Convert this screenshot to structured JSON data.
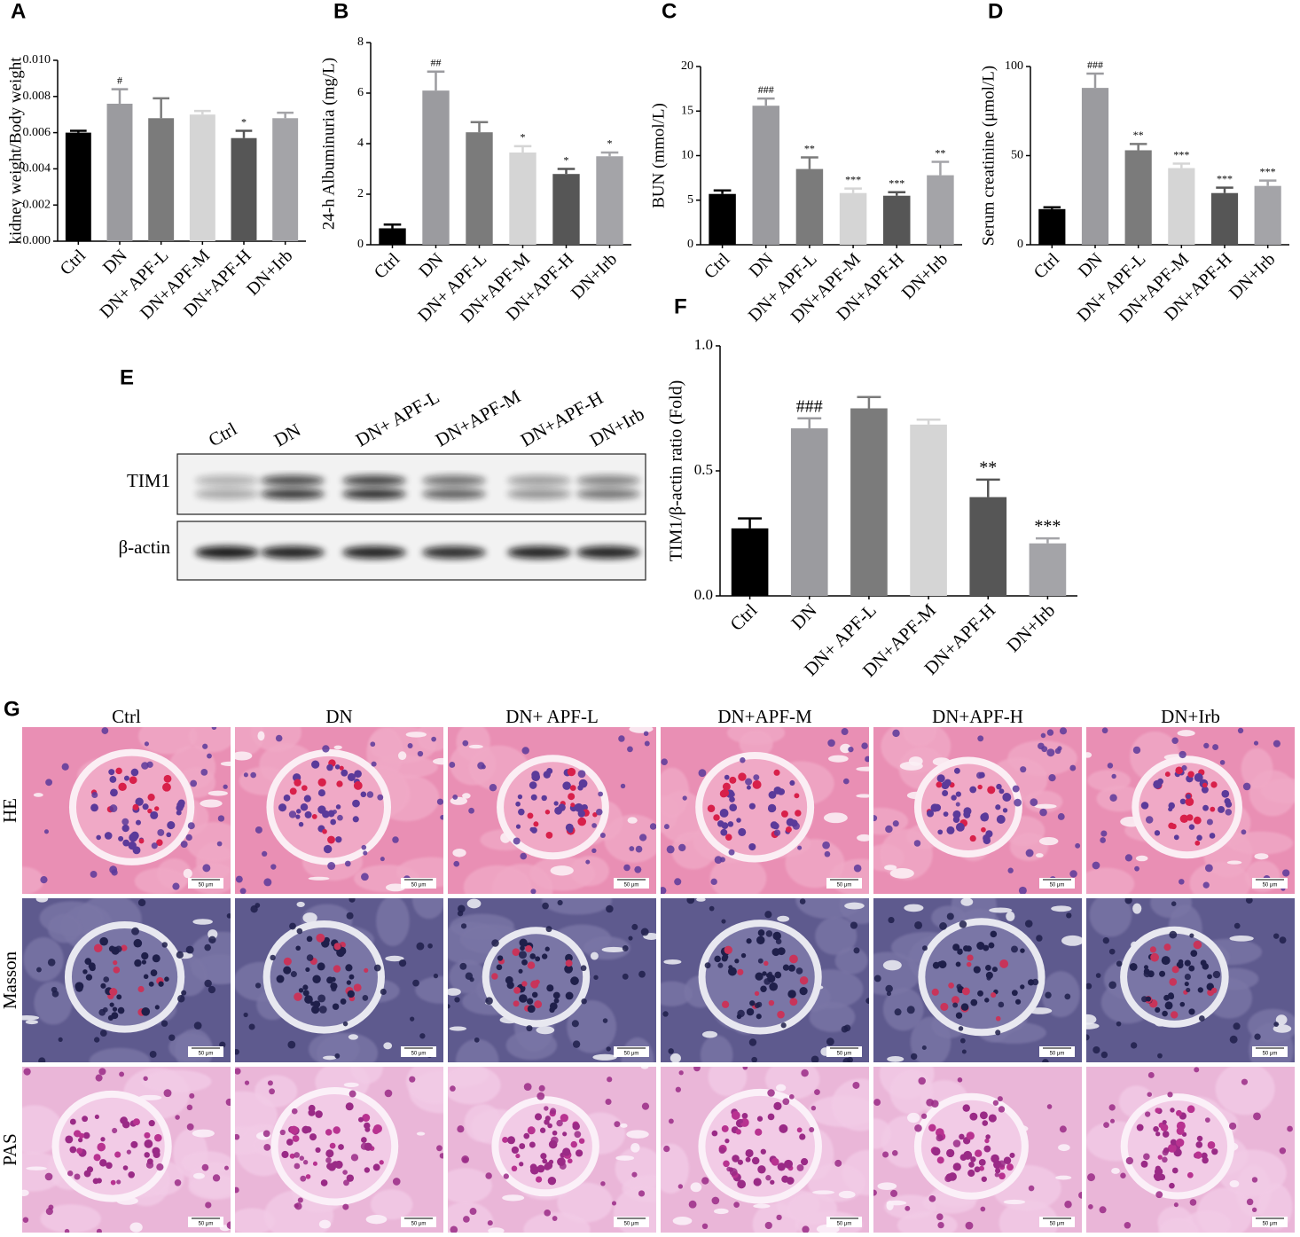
{
  "chart_data": [
    {
      "type": "bar",
      "panel": "A",
      "ylabel": "kidney weight/Body weight",
      "categories": [
        "Ctrl",
        "DN",
        "DN+ APF-L",
        "DN+APF-M",
        "DN+APF-H",
        "DN+Irb"
      ],
      "values": [
        0.006,
        0.0076,
        0.0068,
        0.007,
        0.0057,
        0.0068
      ],
      "errors": [
        0.0001,
        0.0008,
        0.0011,
        0.0002,
        0.0004,
        0.0003
      ],
      "annotations": [
        null,
        "#",
        null,
        null,
        "*",
        null
      ],
      "colors": [
        "#000000",
        "#9b9b9f",
        "#7b7b7b",
        "#d5d5d5",
        "#565656",
        "#a4a4a8"
      ],
      "ylim": [
        0,
        0.01
      ],
      "yticks": [
        {
          "value": 0,
          "label": "0.000"
        },
        {
          "value": 0.002,
          "label": "0.002"
        },
        {
          "value": 0.004,
          "label": "0.004"
        },
        {
          "value": 0.006,
          "label": "0.006"
        },
        {
          "value": 0.008,
          "label": "0.008"
        },
        {
          "value": 0.01,
          "label": "0.010"
        }
      ]
    },
    {
      "type": "bar",
      "panel": "B",
      "ylabel": "24-h Albuminuria (mg/L)",
      "categories": [
        "Ctrl",
        "DN",
        "DN+ APF-L",
        "DN+APF-M",
        "DN+APF-H",
        "DN+Irb"
      ],
      "values": [
        0.65,
        6.1,
        4.45,
        3.65,
        2.8,
        3.5
      ],
      "errors": [
        0.15,
        0.75,
        0.4,
        0.25,
        0.2,
        0.15
      ],
      "annotations": [
        null,
        "##",
        null,
        "*",
        "*",
        "*"
      ],
      "colors": [
        "#000000",
        "#9b9b9f",
        "#7b7b7b",
        "#d5d5d5",
        "#565656",
        "#a4a4a8"
      ],
      "ylim": [
        0,
        8
      ],
      "yticks": [
        0,
        2,
        4,
        6,
        8
      ]
    },
    {
      "type": "bar",
      "panel": "C",
      "ylabel": "BUN (mmol/L)",
      "categories": [
        "Ctrl",
        "DN",
        "DN+ APF-L",
        "DN+APF-M",
        "DN+APF-H",
        "DN+Irb"
      ],
      "values": [
        5.7,
        15.6,
        8.5,
        5.8,
        5.5,
        7.8
      ],
      "errors": [
        0.4,
        0.8,
        1.3,
        0.5,
        0.4,
        1.5
      ],
      "annotations": [
        null,
        "###",
        "**",
        "***",
        "***",
        "**"
      ],
      "colors": [
        "#000000",
        "#9b9b9f",
        "#7b7b7b",
        "#d5d5d5",
        "#565656",
        "#a4a4a8"
      ],
      "ylim": [
        0,
        20
      ],
      "yticks": [
        0,
        5,
        10,
        15,
        20
      ]
    },
    {
      "type": "bar",
      "panel": "D",
      "ylabel": "Serum creatinine (μmol/L)",
      "categories": [
        "Ctrl",
        "DN",
        "DN+ APF-L",
        "DN+APF-M",
        "DN+APF-H",
        "DN+Irb"
      ],
      "values": [
        20,
        88,
        53,
        43,
        29,
        33
      ],
      "errors": [
        1,
        8,
        3.5,
        2.5,
        3,
        3
      ],
      "annotations": [
        null,
        "###",
        "**",
        "***",
        "***",
        "***"
      ],
      "colors": [
        "#000000",
        "#9b9b9f",
        "#7b7b7b",
        "#d5d5d5",
        "#565656",
        "#a4a4a8"
      ],
      "ylim": [
        0,
        100
      ],
      "yticks": [
        0,
        50,
        100
      ]
    },
    {
      "type": "bar",
      "panel": "F",
      "ylabel": "TIM1/β-actin ratio (Fold)",
      "categories": [
        "Ctrl",
        "DN",
        "DN+ APF-L",
        "DN+APF-M",
        "DN+APF-H",
        "DN+Irb"
      ],
      "values": [
        0.27,
        0.67,
        0.75,
        0.685,
        0.395,
        0.21
      ],
      "errors": [
        0.04,
        0.04,
        0.045,
        0.02,
        0.07,
        0.02
      ],
      "annotations": [
        null,
        "###",
        null,
        null,
        "**",
        "***"
      ],
      "colors": [
        "#000000",
        "#9b9b9f",
        "#7b7b7b",
        "#d5d5d5",
        "#565656",
        "#a4a4a8"
      ],
      "ylim": [
        0,
        1
      ],
      "yticks": [
        {
          "value": 0,
          "label": "0.0"
        },
        {
          "value": 0.5,
          "label": "0.5"
        },
        {
          "value": 1,
          "label": "1.0"
        }
      ]
    }
  ],
  "western_blot": {
    "panel": "E",
    "lanes": [
      "Ctrl",
      "DN",
      "DN+ APF-L",
      "DN+APF-M",
      "DN+APF-H",
      "DN+Irb"
    ],
    "rows": [
      "TIM1",
      "β-actin"
    ]
  },
  "histology": {
    "panel": "G",
    "columns": [
      "Ctrl",
      "DN",
      "DN+ APF-L",
      "DN+APF-M",
      "DN+APF-H",
      "DN+Irb"
    ],
    "rows": [
      "HE",
      "Masson",
      "PAS"
    ],
    "scale_bar": "50 μm"
  }
}
